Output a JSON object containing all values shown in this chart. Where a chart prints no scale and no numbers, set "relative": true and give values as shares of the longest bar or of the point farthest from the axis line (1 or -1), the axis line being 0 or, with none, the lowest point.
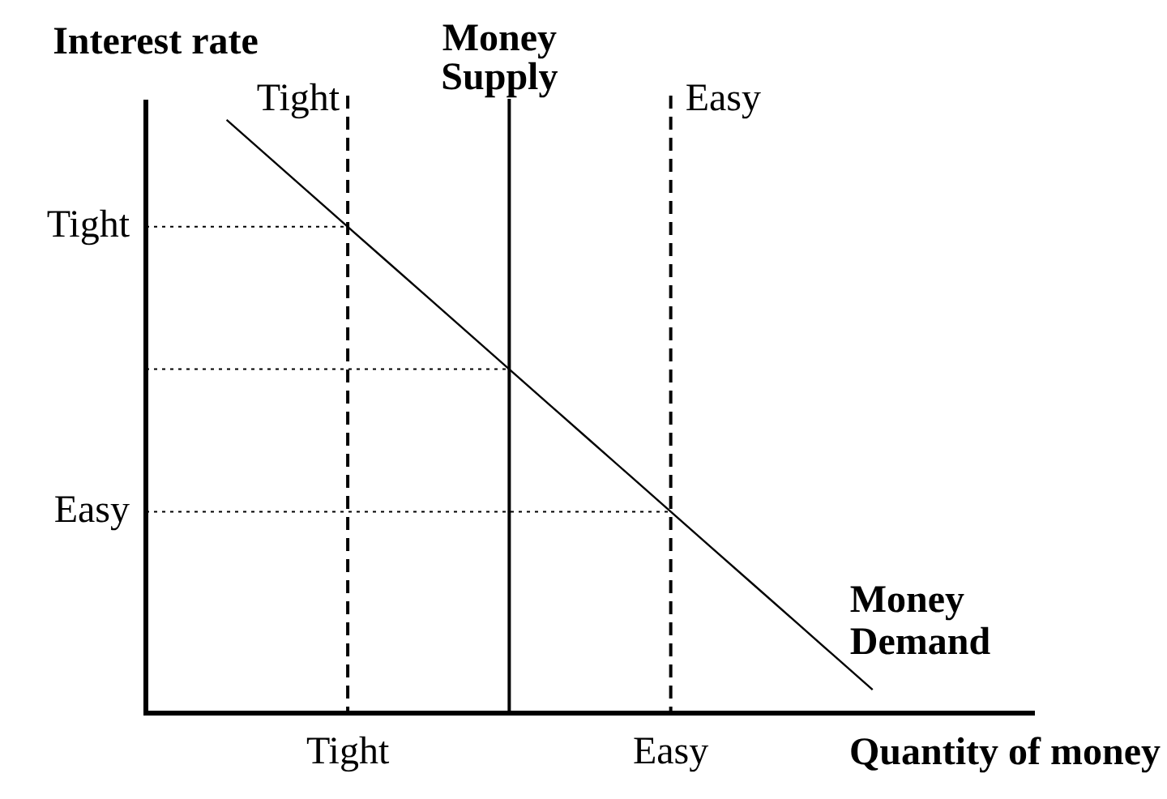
{
  "chart_data": {
    "type": "line",
    "relative": true,
    "xlabel": "Quantity of money",
    "ylabel": "Interest rate",
    "marker": "none",
    "categories": [
      null,
      null,
      null,
      null,
      null,
      "Tight",
      null,
      null,
      null,
      null,
      null,
      null,
      null,
      "Easy",
      null,
      null,
      null,
      null,
      null,
      null,
      null,
      null,
      null
    ],
    "series": [
      {
        "name": "Money Demand",
        "color": "#000000",
        "values": [
          null,
          null,
          1.0,
          0.94,
          0.88,
          0.82,
          0.76,
          0.7,
          0.64,
          0.58,
          0.52,
          0.46,
          0.4,
          0.34,
          0.28,
          0.22,
          0.16,
          0.1,
          0.04,
          null,
          null,
          null,
          null
        ]
      }
    ],
    "ref_lines": [
      {
        "axis": "x",
        "value": "Tight",
        "label": "Tight",
        "line_style": "dashed",
        "color": "#000000"
      },
      {
        "axis": "x",
        "value": "Easy",
        "label": "Easy",
        "line_style": "dashed",
        "color": "#000000"
      },
      {
        "axis": "y",
        "value": 0.82,
        "label": "Tight",
        "line_style": "dotted",
        "color": "#000000"
      },
      {
        "axis": "y",
        "value": 0.58,
        "line_style": "dotted",
        "color": "#000000"
      },
      {
        "axis": "y",
        "value": 0.34,
        "label": "Easy",
        "line_style": "dotted",
        "color": "#000000"
      }
    ],
    "annotations": [
      "Money Supply"
    ]
  }
}
